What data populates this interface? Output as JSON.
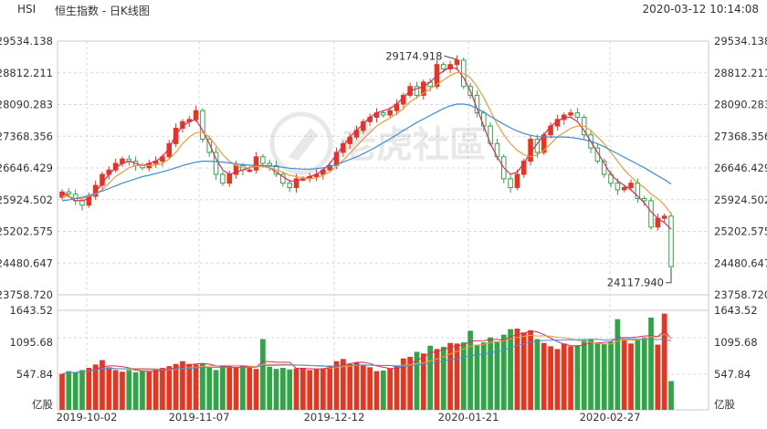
{
  "header": {
    "symbol": "HSI",
    "index_name": "恒生指数 - 日K线图",
    "timestamp": "2020-03-12 10:14:08"
  },
  "watermark": "老虎社區",
  "colors": {
    "up": "#e8351f",
    "down": "#2ea646",
    "ma_short": "#e0285c",
    "ma_mid": "#f39a3a",
    "ma_long": "#3d8fd4",
    "grid": "#d8d8d8"
  },
  "price_axis": {
    "left_ticks": [
      "29534.138",
      "28812.211",
      "28090.283",
      "27368.356",
      "26646.429",
      "25924.502",
      "25202.575",
      "24480.647",
      "23758.720"
    ],
    "right_ticks": [
      "29534.138",
      "28812.211",
      "28090.283",
      "27368.356",
      "26646.429",
      "25924.502",
      "25202.575",
      "24480.647",
      "23758.720"
    ]
  },
  "volume_axis": {
    "ticks": [
      "1643.52",
      "1095.68",
      "547.84"
    ],
    "unit": "亿股"
  },
  "annotations": {
    "high_label": "29174.918",
    "low_label": "24117.940"
  },
  "chart_data": {
    "type": "candlestick",
    "x_labels": [
      "2019-10-02",
      "2019-11-07",
      "2019-12-12",
      "2020-01-21",
      "2020-02-27"
    ],
    "ylim": [
      23758.72,
      29534.138
    ],
    "vol_lim": [
      0,
      1800
    ],
    "high_point": 29174.918,
    "low_point": 24117.94,
    "closes": [
      26100,
      26050,
      25900,
      25800,
      26000,
      26250,
      26500,
      26600,
      26750,
      26850,
      26800,
      26700,
      26650,
      26750,
      26800,
      26900,
      27200,
      27550,
      27700,
      27750,
      27950,
      27300,
      27000,
      26500,
      26300,
      26500,
      26700,
      26600,
      26600,
      26900,
      26750,
      26700,
      26500,
      26300,
      26200,
      26400,
      26400,
      26450,
      26500,
      26600,
      26700,
      27000,
      27200,
      27350,
      27500,
      27700,
      27800,
      27900,
      27850,
      27950,
      28100,
      28300,
      28500,
      28300,
      28600,
      28500,
      29000,
      28900,
      29000,
      29100,
      28500,
      28300,
      27900,
      27600,
      27200,
      26900,
      26400,
      26200,
      26500,
      26800,
      27300,
      27000,
      27400,
      27600,
      27750,
      27850,
      27900,
      27800,
      27400,
      27100,
      26800,
      26500,
      26300,
      26150,
      26200,
      26300,
      25950,
      25900,
      25300,
      25500,
      25550,
      24400
    ],
    "volumes": [
      650,
      700,
      680,
      720,
      760,
      820,
      900,
      770,
      720,
      690,
      720,
      680,
      700,
      690,
      720,
      760,
      790,
      830,
      880,
      830,
      820,
      840,
      760,
      720,
      800,
      790,
      780,
      810,
      760,
      740,
      1280,
      780,
      740,
      760,
      730,
      750,
      760,
      720,
      740,
      750,
      800,
      880,
      920,
      830,
      860,
      810,
      770,
      700,
      710,
      750,
      800,
      930,
      960,
      1050,
      1020,
      1160,
      1100,
      1140,
      1210,
      1200,
      1220,
      1430,
      1180,
      1220,
      1310,
      1240,
      1360,
      1460,
      1470,
      1400,
      1440,
      1280,
      1210,
      1150,
      1100,
      1200,
      1150,
      1170,
      1260,
      1280,
      1200,
      1190,
      1230,
      1640,
      1270,
      1200,
      1260,
      1310,
      1670,
      1180,
      1740,
      520
    ],
    "ma_short": [
      26100,
      26000,
      25900,
      25900,
      25950,
      26100,
      26300,
      26500,
      26650,
      26750,
      26800,
      26750,
      26700,
      26750,
      26800,
      26900,
      27100,
      27400,
      27600,
      27700,
      27750,
      27500,
      27200,
      26850,
      26600,
      26500,
      26550,
      26600,
      26650,
      26700,
      26700,
      26650,
      26550,
      26450,
      26350,
      26350,
      26400,
      26450,
      26500,
      26600,
      26750,
      26950,
      27150,
      27350,
      27500,
      27650,
      27800,
      27900,
      27950,
      28000,
      28100,
      28250,
      28400,
      28450,
      28500,
      28600,
      28750,
      28850,
      28950,
      28900,
      28700,
      28400,
      28000,
      27600,
      27200,
      26900,
      26650,
      26500,
      26550,
      26750,
      27000,
      27200,
      27400,
      27600,
      27700,
      27800,
      27800,
      27700,
      27500,
      27250,
      27000,
      26750,
      26500,
      26350,
      26250,
      26150,
      26000,
      25850,
      25650,
      25500,
      25400,
      25250
    ],
    "ma_mid": [
      26000,
      26000,
      25950,
      25950,
      26000,
      26050,
      26150,
      26300,
      26450,
      26550,
      26650,
      26700,
      26700,
      26700,
      26720,
      26750,
      26850,
      27000,
      27200,
      27350,
      27450,
      27450,
      27350,
      27150,
      26950,
      26800,
      26700,
      26650,
      26650,
      26680,
      26680,
      26650,
      26600,
      26550,
      26480,
      26450,
      26420,
      26400,
      26420,
      26480,
      26560,
      26680,
      26820,
      26980,
      27140,
      27300,
      27450,
      27600,
      27700,
      27780,
      27880,
      28000,
      28150,
      28250,
      28350,
      28450,
      28550,
      28650,
      28750,
      28820,
      28800,
      28700,
      28500,
      28250,
      27950,
      27650,
      27400,
      27200,
      27050,
      26950,
      26900,
      26950,
      27050,
      27200,
      27350,
      27450,
      27550,
      27600,
      27600,
      27500,
      27350,
      27200,
      27000,
      26800,
      26600,
      26450,
      26300,
      26200,
      26050,
      25950,
      25800,
      25600
    ],
    "ma_long": [
      25900,
      25920,
      25950,
      25980,
      26020,
      26070,
      26120,
      26180,
      26240,
      26300,
      26350,
      26400,
      26450,
      26480,
      26520,
      26560,
      26600,
      26650,
      26700,
      26740,
      26780,
      26800,
      26800,
      26790,
      26780,
      26760,
      26740,
      26720,
      26710,
      26700,
      26700,
      26690,
      26680,
      26660,
      26640,
      26630,
      26620,
      26620,
      26630,
      26650,
      26680,
      26720,
      26780,
      26840,
      26900,
      26970,
      27050,
      27130,
      27220,
      27310,
      27400,
      27500,
      27590,
      27680,
      27760,
      27840,
      27920,
      28000,
      28060,
      28100,
      28100,
      28070,
      28000,
      27910,
      27820,
      27730,
      27640,
      27560,
      27490,
      27430,
      27390,
      27360,
      27350,
      27350,
      27350,
      27350,
      27340,
      27320,
      27290,
      27250,
      27200,
      27130,
      27050,
      26970,
      26890,
      26810,
      26730,
      26650,
      26560,
      26470,
      26380,
      26280
    ]
  }
}
